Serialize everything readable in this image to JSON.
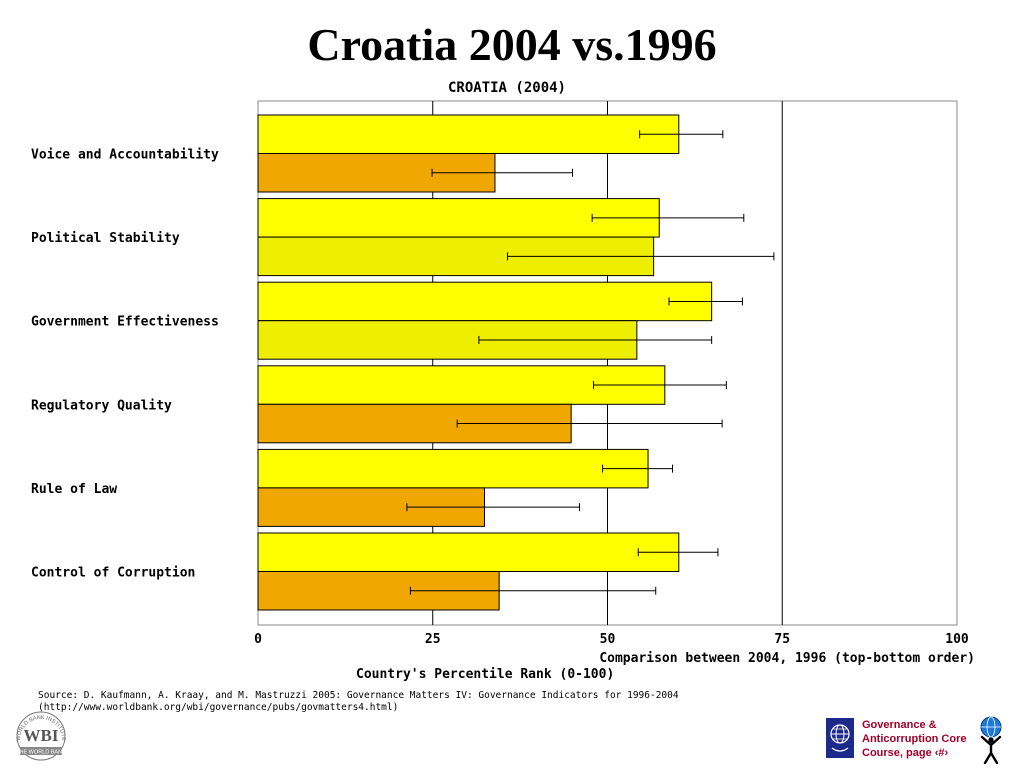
{
  "slide": {
    "title": "Croatia 2004 vs.1996"
  },
  "chart_data": {
    "type": "bar",
    "orientation": "horizontal",
    "title": "CROATIA (2004)",
    "categories": [
      "Voice and Accountability",
      "Political Stability",
      "Government Effectiveness",
      "Regulatory Quality",
      "Rule of Law",
      "Control of Corruption"
    ],
    "series": [
      {
        "year": "2004",
        "values": [
          60.2,
          57.4,
          64.9,
          58.2,
          55.8,
          60.2
        ],
        "error_low": [
          54.6,
          47.8,
          58.8,
          48.0,
          49.3,
          54.4
        ],
        "error_high": [
          66.5,
          69.5,
          69.3,
          67.0,
          59.3,
          65.8
        ],
        "colors": [
          "#ffff00",
          "#ffff00",
          "#ffff00",
          "#ffff00",
          "#ffff00",
          "#ffff00"
        ]
      },
      {
        "year": "1996",
        "values": [
          33.9,
          56.6,
          54.2,
          44.8,
          32.4,
          34.5
        ],
        "error_low": [
          24.9,
          35.7,
          31.6,
          28.5,
          21.3,
          21.8
        ],
        "error_high": [
          45.0,
          73.8,
          64.9,
          66.4,
          46.0,
          56.9
        ],
        "colors": [
          "#f0a800",
          "#eeee00",
          "#eeee00",
          "#f0a800",
          "#f0a800",
          "#f0a800"
        ]
      }
    ],
    "xlim": [
      0,
      100
    ],
    "xticks": [
      "0",
      "25",
      "50",
      "75",
      "100"
    ],
    "xlabel": "Country's Percentile Rank (0-100)",
    "legend_note": "Comparison between 2004, 1996 (top-bottom order)",
    "grid": "vertical lines at 25, 50, 75",
    "bar_outline": "#000000"
  },
  "source": {
    "line1": "Source: D. Kaufmann, A. Kraay, and M. Mastruzzi 2005: Governance Matters IV: Governance Indicators for 1996-2004",
    "line2": "(http://www.worldbank.org/wbi/governance/pubs/govmatters4.html)"
  },
  "footer": {
    "wbi_logo_text": "WBI",
    "wbi_ring_text": "WORLD BANK INSTITUTE",
    "wbi_band_text": "THE WORLD BANK",
    "course_line1": "Governance &",
    "course_line2": "Anticorruption Core",
    "course_line3": "Course, page ‹#›",
    "globe_icon": "globe-icon",
    "person_icon": "person-holding-globe-icon"
  }
}
